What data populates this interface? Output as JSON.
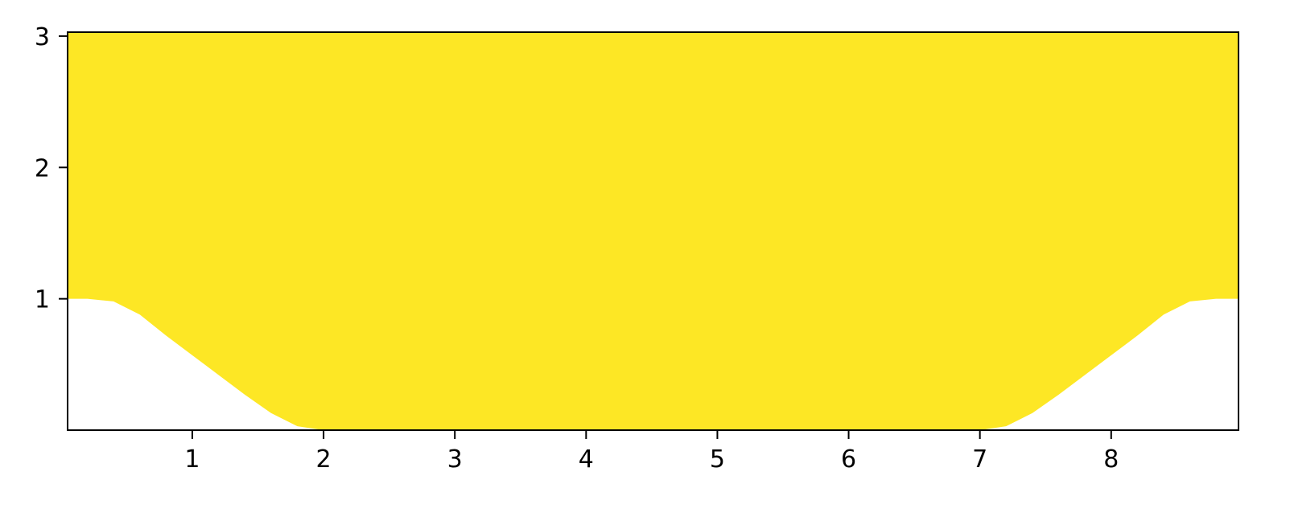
{
  "chart_data": {
    "type": "area",
    "title": "",
    "xlabel": "",
    "ylabel": "",
    "xlim": [
      0.05,
      8.97
    ],
    "ylim": [
      0.0,
      3.03
    ],
    "x_ticks": [
      {
        "value": 1,
        "label": "1"
      },
      {
        "value": 2,
        "label": "2"
      },
      {
        "value": 3,
        "label": "3"
      },
      {
        "value": 4,
        "label": "4"
      },
      {
        "value": 5,
        "label": "5"
      },
      {
        "value": 6,
        "label": "6"
      },
      {
        "value": 7,
        "label": "7"
      },
      {
        "value": 8,
        "label": "8"
      }
    ],
    "y_ticks": [
      {
        "value": 1,
        "label": "1"
      },
      {
        "value": 2,
        "label": "2"
      },
      {
        "value": 3,
        "label": "3"
      }
    ],
    "grid": false,
    "series": [
      {
        "fill_color": "#fde725",
        "upper": 3.03,
        "lower_boundary": {
          "x": [
            0.05,
            0.2,
            0.4,
            0.6,
            0.8,
            1.0,
            1.2,
            1.4,
            1.6,
            1.8,
            2.0,
            2.2,
            6.8,
            7.0,
            7.2,
            7.4,
            7.6,
            7.8,
            8.0,
            8.2,
            8.4,
            8.6,
            8.8,
            8.97
          ],
          "y": [
            1.0,
            1.0,
            0.98,
            0.88,
            0.72,
            0.57,
            0.42,
            0.27,
            0.13,
            0.03,
            0.0,
            0.0,
            0.0,
            0.0,
            0.03,
            0.13,
            0.27,
            0.42,
            0.57,
            0.72,
            0.88,
            0.98,
            1.0,
            1.0
          ]
        }
      }
    ]
  }
}
